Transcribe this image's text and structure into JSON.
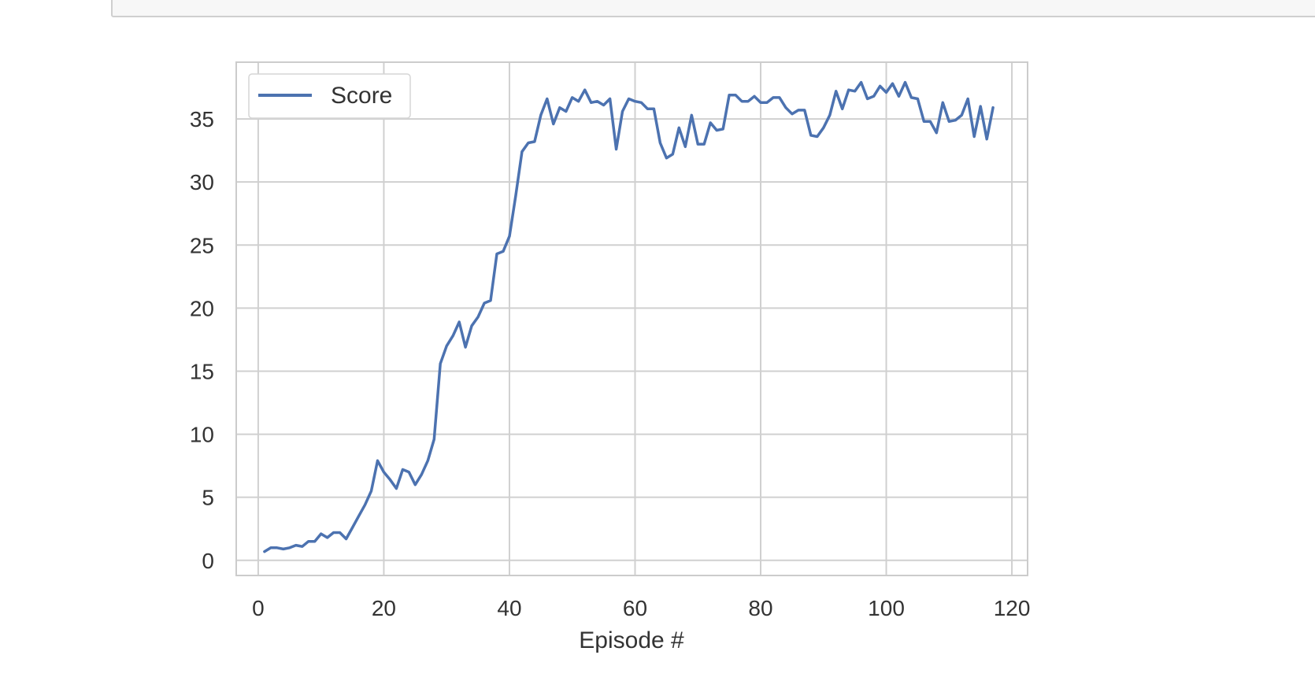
{
  "chart_data": {
    "type": "line",
    "title": "",
    "xlabel": "Episode #",
    "ylabel": "",
    "xlim": [
      -3.5,
      122.5
    ],
    "ylim": [
      -1.2,
      39.5
    ],
    "xticks": [
      0,
      20,
      40,
      60,
      80,
      100,
      120
    ],
    "yticks": [
      0,
      5,
      10,
      15,
      20,
      25,
      30,
      35
    ],
    "grid": true,
    "legend": "top-left",
    "colors": {
      "line": "#4c72b0",
      "grid": "#d0d0d0",
      "frame": "#cccccc",
      "tick_text": "#333333"
    },
    "series": [
      {
        "name": "Score",
        "x": [
          1,
          2,
          3,
          4,
          5,
          6,
          7,
          8,
          9,
          10,
          11,
          12,
          13,
          14,
          15,
          16,
          17,
          18,
          19,
          20,
          21,
          22,
          23,
          24,
          25,
          26,
          27,
          28,
          29,
          30,
          31,
          32,
          33,
          34,
          35,
          36,
          37,
          38,
          39,
          40,
          41,
          42,
          43,
          44,
          45,
          46,
          47,
          48,
          49,
          50,
          51,
          52,
          53,
          54,
          55,
          56,
          57,
          58,
          59,
          60,
          61,
          62,
          63,
          64,
          65,
          66,
          67,
          68,
          69,
          70,
          71,
          72,
          73,
          74,
          75,
          76,
          77,
          78,
          79,
          80,
          81,
          82,
          83,
          84,
          85,
          86,
          87,
          88,
          89,
          90,
          91,
          92,
          93,
          94,
          95,
          96,
          97,
          98,
          99,
          100,
          101,
          102,
          103,
          104,
          105,
          106,
          107,
          108,
          109,
          110,
          111,
          112,
          113,
          114,
          115,
          116,
          117
        ],
        "values": [
          0.7,
          1.0,
          1.0,
          0.9,
          1.0,
          1.2,
          1.1,
          1.5,
          1.5,
          2.1,
          1.8,
          2.2,
          2.2,
          1.7,
          2.6,
          3.5,
          4.4,
          5.5,
          7.9,
          7.0,
          6.4,
          5.7,
          7.2,
          7.0,
          6.0,
          6.8,
          7.9,
          9.6,
          15.6,
          17.0,
          17.8,
          18.9,
          16.9,
          18.6,
          19.3,
          20.4,
          20.6,
          24.3,
          24.5,
          25.7,
          28.9,
          32.4,
          33.1,
          33.2,
          35.3,
          36.6,
          34.6,
          35.9,
          35.6,
          36.7,
          36.4,
          37.3,
          36.3,
          36.4,
          36.1,
          36.6,
          32.6,
          35.6,
          36.6,
          36.4,
          36.3,
          35.8,
          35.8,
          33.1,
          31.9,
          32.2,
          34.3,
          32.8,
          35.3,
          33.0,
          33.0,
          34.7,
          34.1,
          34.2,
          36.9,
          36.9,
          36.4,
          36.4,
          36.8,
          36.3,
          36.3,
          36.7,
          36.7,
          35.9,
          35.4,
          35.7,
          35.7,
          33.7,
          33.6,
          34.3,
          35.3,
          37.2,
          35.8,
          37.3,
          37.2,
          37.9,
          36.6,
          36.8,
          37.6,
          37.1,
          37.8,
          36.8,
          37.9,
          36.7,
          36.6,
          34.8,
          34.8,
          33.9,
          36.3,
          34.8,
          34.9,
          35.3,
          36.6,
          33.6,
          36.0,
          33.4,
          35.9
        ]
      }
    ]
  }
}
